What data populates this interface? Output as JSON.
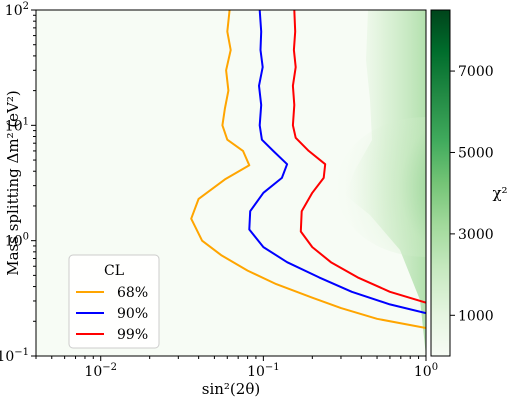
{
  "chart_data": {
    "type": "contour",
    "xlabel": "sin²(2θ)",
    "ylabel": "Mass splitting Δm² (eV²)",
    "x_scale": "log",
    "y_scale": "log",
    "xlim": [
      0.004,
      1
    ],
    "ylim": [
      0.1,
      100
    ],
    "x_ticks": [
      {
        "value": 0.01,
        "base": "10",
        "exp": "−2"
      },
      {
        "value": 0.1,
        "base": "10",
        "exp": "−1"
      },
      {
        "value": 1,
        "base": "10",
        "exp": "0"
      }
    ],
    "y_ticks": [
      {
        "value": 0.1,
        "base": "10",
        "exp": "−1"
      },
      {
        "value": 1,
        "base": "10",
        "exp": "0"
      },
      {
        "value": 10,
        "base": "10",
        "exp": "1"
      },
      {
        "value": 100,
        "base": "10",
        "exp": "2"
      }
    ],
    "colorbar": {
      "label": "χ²",
      "range": [
        0,
        8500
      ],
      "ticks": [
        "1000",
        "3000",
        "5000",
        "7000"
      ],
      "tick_values": [
        1000,
        3000,
        5000,
        7000
      ],
      "colormap": "Greens",
      "color_low": "#f7fcf5",
      "color_high": "#00441b"
    },
    "legend": {
      "title": "CL",
      "placement": "lower-left",
      "entries": [
        {
          "label": "68%",
          "color": "#ffa500"
        },
        {
          "label": "90%",
          "color": "#0000ff"
        },
        {
          "label": "99%",
          "color": "#ff0000"
        }
      ]
    },
    "series": [
      {
        "label": "68%",
        "color": "#ffa500",
        "points": [
          [
            1,
            0.175
          ],
          [
            0.5,
            0.21
          ],
          [
            0.3,
            0.26
          ],
          [
            0.2,
            0.32
          ],
          [
            0.12,
            0.42
          ],
          [
            0.08,
            0.55
          ],
          [
            0.055,
            0.75
          ],
          [
            0.042,
            1.0
          ],
          [
            0.036,
            1.55
          ],
          [
            0.04,
            2.3
          ],
          [
            0.058,
            3.4
          ],
          [
            0.082,
            4.5
          ],
          [
            0.075,
            6.0
          ],
          [
            0.06,
            7.5
          ],
          [
            0.056,
            10
          ],
          [
            0.058,
            14
          ],
          [
            0.061,
            20
          ],
          [
            0.059,
            30
          ],
          [
            0.063,
            45
          ],
          [
            0.06,
            65
          ],
          [
            0.062,
            100
          ]
        ]
      },
      {
        "label": "90%",
        "color": "#0000ff",
        "points": [
          [
            1,
            0.235
          ],
          [
            0.6,
            0.28
          ],
          [
            0.35,
            0.36
          ],
          [
            0.22,
            0.48
          ],
          [
            0.14,
            0.65
          ],
          [
            0.1,
            0.88
          ],
          [
            0.082,
            1.25
          ],
          [
            0.083,
            1.8
          ],
          [
            0.1,
            2.6
          ],
          [
            0.13,
            3.5
          ],
          [
            0.14,
            4.6
          ],
          [
            0.115,
            6.0
          ],
          [
            0.098,
            7.5
          ],
          [
            0.095,
            10
          ],
          [
            0.097,
            15
          ],
          [
            0.094,
            22
          ],
          [
            0.099,
            32
          ],
          [
            0.096,
            45
          ],
          [
            0.097,
            65
          ],
          [
            0.095,
            100
          ]
        ]
      },
      {
        "label": "99%",
        "color": "#ff0000",
        "points": [
          [
            1,
            0.29
          ],
          [
            0.6,
            0.36
          ],
          [
            0.38,
            0.48
          ],
          [
            0.26,
            0.65
          ],
          [
            0.2,
            0.88
          ],
          [
            0.17,
            1.2
          ],
          [
            0.172,
            1.8
          ],
          [
            0.2,
            2.6
          ],
          [
            0.235,
            3.5
          ],
          [
            0.24,
            4.6
          ],
          [
            0.19,
            6.0
          ],
          [
            0.158,
            7.8
          ],
          [
            0.152,
            10
          ],
          [
            0.155,
            15
          ],
          [
            0.152,
            22
          ],
          [
            0.158,
            32
          ],
          [
            0.154,
            45
          ],
          [
            0.157,
            65
          ],
          [
            0.155,
            100
          ]
        ]
      }
    ]
  }
}
